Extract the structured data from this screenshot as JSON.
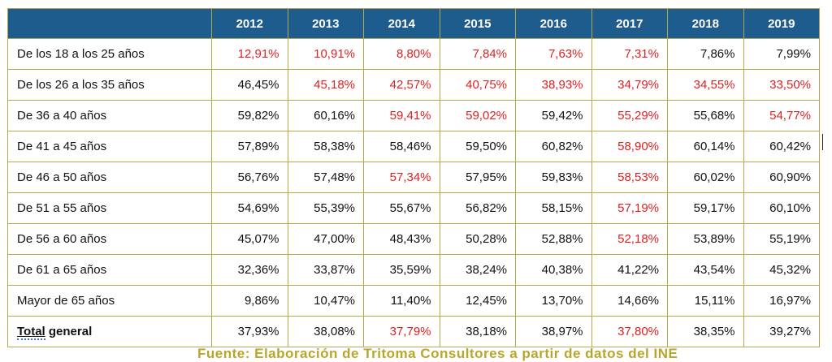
{
  "table": {
    "header": {
      "blank": "",
      "years": [
        "2012",
        "2013",
        "2014",
        "2015",
        "2016",
        "2017",
        "2018",
        "2019"
      ]
    },
    "rows": [
      {
        "label": "De los 18 a los 25 años",
        "values": [
          "12,91%",
          "10,91%",
          "8,80%",
          "7,84%",
          "7,63%",
          "7,31%",
          "7,86%",
          "7,99%"
        ],
        "red": [
          true,
          true,
          true,
          true,
          true,
          true,
          false,
          false
        ]
      },
      {
        "label": "De los 26 a los 35 años",
        "values": [
          "46,45%",
          "45,18%",
          "42,57%",
          "40,75%",
          "38,93%",
          "34,79%",
          "34,55%",
          "33,50%"
        ],
        "red": [
          false,
          true,
          true,
          true,
          true,
          true,
          true,
          true
        ]
      },
      {
        "label": "De 36 a 40 años",
        "values": [
          "59,82%",
          "60,16%",
          "59,41%",
          "59,02%",
          "59,42%",
          "55,29%",
          "55,68%",
          "54,77%"
        ],
        "red": [
          false,
          false,
          true,
          true,
          false,
          true,
          false,
          true
        ]
      },
      {
        "label": "De 41 a 45 años",
        "values": [
          "57,89%",
          "58,38%",
          "58,46%",
          "59,50%",
          "60,82%",
          "58,90%",
          "60,14%",
          "60,42%"
        ],
        "red": [
          false,
          false,
          false,
          false,
          false,
          true,
          false,
          false
        ]
      },
      {
        "label": "De 46 a 50 años",
        "values": [
          "56,76%",
          "57,48%",
          "57,34%",
          "57,95%",
          "59,83%",
          "58,53%",
          "60,02%",
          "60,90%"
        ],
        "red": [
          false,
          false,
          true,
          false,
          false,
          true,
          false,
          false
        ]
      },
      {
        "label": "De 51 a 55 años",
        "values": [
          "54,69%",
          "55,39%",
          "55,67%",
          "56,82%",
          "58,15%",
          "57,19%",
          "59,17%",
          "60,10%"
        ],
        "red": [
          false,
          false,
          false,
          false,
          false,
          true,
          false,
          false
        ]
      },
      {
        "label": "De 56 a 60 años",
        "values": [
          "45,07%",
          "47,00%",
          "48,43%",
          "50,28%",
          "52,88%",
          "52,18%",
          "53,89%",
          "55,19%"
        ],
        "red": [
          false,
          false,
          false,
          false,
          false,
          true,
          false,
          false
        ]
      },
      {
        "label": "De 61 a 65 años",
        "values": [
          "32,36%",
          "33,87%",
          "35,59%",
          "38,24%",
          "40,38%",
          "41,22%",
          "43,54%",
          "45,32%"
        ],
        "red": [
          false,
          false,
          false,
          false,
          false,
          false,
          false,
          false
        ]
      },
      {
        "label": "Mayor de 65 años",
        "values": [
          "9,86%",
          "10,47%",
          "11,40%",
          "12,45%",
          "13,70%",
          "14,66%",
          "15,11%",
          "16,97%"
        ],
        "red": [
          false,
          false,
          false,
          false,
          false,
          false,
          false,
          false
        ]
      }
    ],
    "total": {
      "label_word": "Total",
      "label_rest": " general",
      "values": [
        "37,93%",
        "38,08%",
        "37,79%",
        "38,18%",
        "38,97%",
        "37,80%",
        "38,35%",
        "39,27%"
      ],
      "red": [
        false,
        false,
        true,
        false,
        false,
        true,
        false,
        false
      ]
    }
  },
  "footnote": "Fuente: Elaboración de Tritoma Consultores a partir de datos del INE",
  "colors": {
    "header_bg": "#1f5c8e",
    "border": "#b5ab4a",
    "red_value": "#e02020",
    "footnote": "#b8a62c"
  }
}
